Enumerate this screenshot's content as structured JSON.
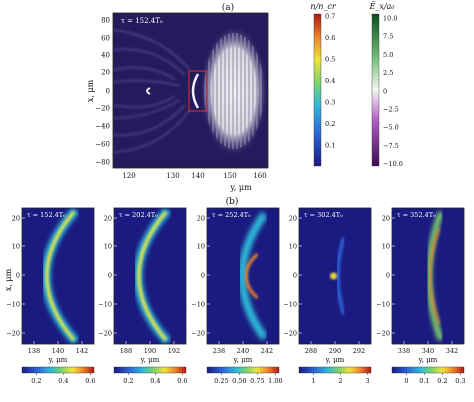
{
  "panel_a": {
    "label": "(a)",
    "tau": "τ = 152.4T₀",
    "xlabel": "y, μm",
    "ylabel": "x, μm",
    "xticks": [
      "120",
      "130",
      "140",
      "150",
      "160"
    ],
    "yticks": [
      "80",
      "60",
      "40",
      "20",
      "0",
      "−20",
      "−40",
      "−60",
      "−80"
    ],
    "colorbar_density": {
      "title": "n/n_cr",
      "ticks": [
        "0.7",
        "0.6",
        "0.5",
        "0.4",
        "0.3",
        "0.2",
        "0.1"
      ]
    },
    "colorbar_field": {
      "title": "Ẽ_x/a₀",
      "ticks": [
        "10.0",
        "7.5",
        "5.0",
        "2.5",
        "0",
        "−2.5",
        "−5.0",
        "−7.5",
        "−10.0"
      ]
    }
  },
  "panel_b": {
    "label": "(b)",
    "xlabel": "y, μm",
    "ylabel": "x, μm",
    "yticks": [
      "20",
      "10",
      "0",
      "−10",
      "−20"
    ],
    "subpanels": [
      {
        "tau": "τ = 152.4T₀",
        "xticks": [
          "138",
          "140",
          "142"
        ],
        "cticks": [
          "0.2",
          "0.4",
          "0.6"
        ]
      },
      {
        "tau": "τ = 202.4T₀",
        "xticks": [
          "188",
          "190",
          "192"
        ],
        "cticks": [
          "0.2",
          "0.4",
          "0.6"
        ]
      },
      {
        "tau": "τ = 252.4T₀",
        "xticks": [
          "238",
          "240",
          "242"
        ],
        "cticks": [
          "0.25",
          "0.50",
          "0.75",
          "1.00"
        ]
      },
      {
        "tau": "τ = 302.4T₀",
        "xticks": [
          "288",
          "290",
          "292"
        ],
        "cticks": [
          "1",
          "2",
          "3"
        ]
      },
      {
        "tau": "τ = 352.4T₀",
        "xticks": [
          "338",
          "340",
          "342"
        ],
        "cticks": [
          "0",
          "0.1",
          "0.2",
          "0.3"
        ]
      }
    ]
  },
  "chart_data": [
    {
      "type": "heatmap",
      "title": "(a)",
      "annotation": "τ = 152.4T₀",
      "xlabel": "y, μm",
      "ylabel": "x, μm",
      "xlim": [
        113,
        168
      ],
      "ylim": [
        -90,
        90
      ],
      "colorbars": [
        {
          "label": "n/n_cr",
          "range": [
            0,
            0.7
          ]
        },
        {
          "label": "Ẽ_x/a₀",
          "range": [
            -10,
            10
          ]
        }
      ]
    },
    {
      "type": "heatmap",
      "annotation": "τ = 152.4T₀",
      "xlabel": "y, μm",
      "ylabel": "x, μm",
      "xlim": [
        137,
        143
      ],
      "ylim": [
        -27,
        27
      ],
      "crange": [
        0,
        0.7
      ]
    },
    {
      "type": "heatmap",
      "annotation": "τ = 202.4T₀",
      "xlabel": "y, μm",
      "ylabel": "x, μm",
      "xlim": [
        187,
        193
      ],
      "ylim": [
        -27,
        27
      ],
      "crange": [
        0,
        0.7
      ]
    },
    {
      "type": "heatmap",
      "annotation": "τ = 252.4T₀",
      "xlabel": "y, μm",
      "ylabel": "x, μm",
      "xlim": [
        237,
        243
      ],
      "ylim": [
        -27,
        27
      ],
      "crange": [
        0,
        1.05
      ]
    },
    {
      "type": "heatmap",
      "annotation": "τ = 302.4T₀",
      "xlabel": "y, μm",
      "ylabel": "x, μm",
      "xlim": [
        287,
        293
      ],
      "ylim": [
        -27,
        27
      ],
      "crange": [
        0,
        3.2
      ]
    },
    {
      "type": "heatmap",
      "annotation": "τ = 352.4T₀",
      "xlabel": "y, μm",
      "ylabel": "x, μm",
      "xlim": [
        337,
        343
      ],
      "ylim": [
        -27,
        27
      ],
      "crange": [
        0,
        0.35
      ]
    }
  ]
}
